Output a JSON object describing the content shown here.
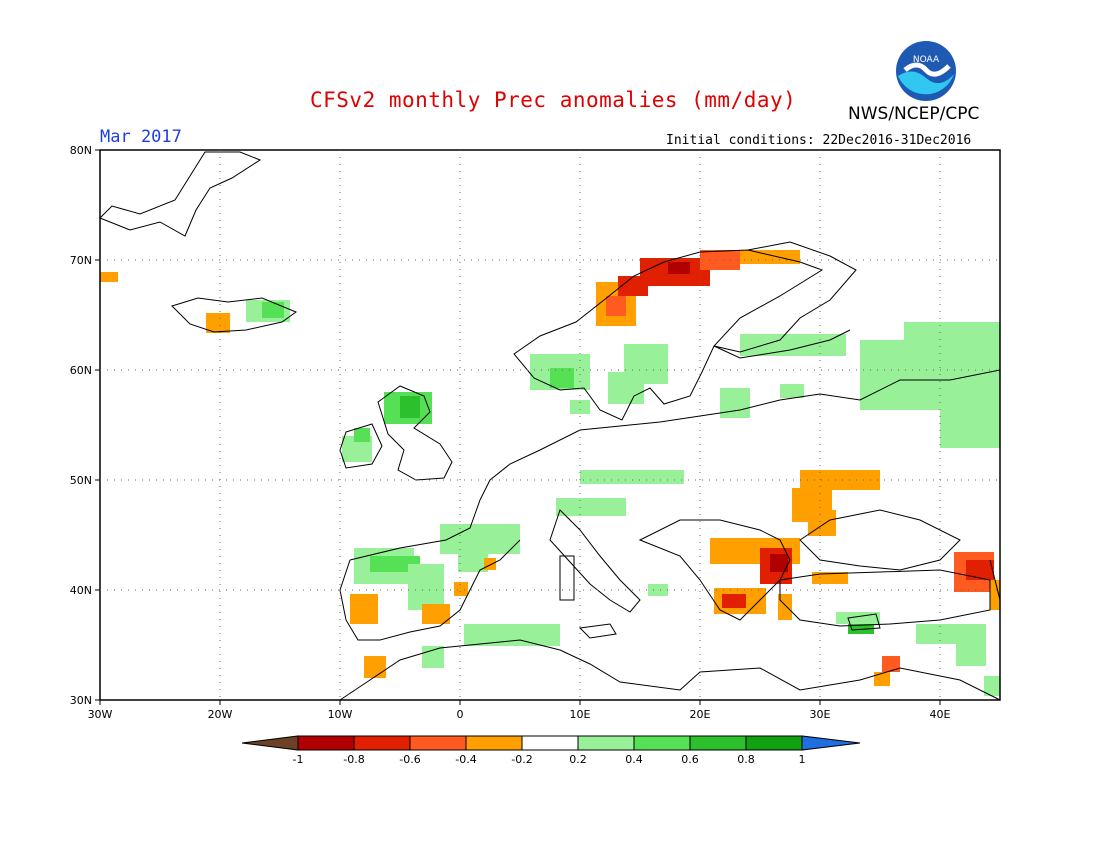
{
  "header": {
    "title": "CFSv2 monthly Prec anomalies (mm/day)",
    "month": "Mar 2017",
    "initial_conditions": "Initial conditions: 22Dec2016-31Dec2016",
    "agency": "NWS/NCEP/CPC",
    "logo_text": "NOAA"
  },
  "map": {
    "lon_range": [
      -30,
      45
    ],
    "lat_range": [
      30,
      80
    ],
    "lat_labels": [
      "80N",
      "70N",
      "60N",
      "50N",
      "40N",
      "30N"
    ],
    "lon_labels": [
      "30W",
      "20W",
      "10W",
      "0",
      "10E",
      "20E",
      "30E",
      "40E"
    ]
  },
  "colorbar": {
    "labels": [
      "-1",
      "-0.8",
      "-0.6",
      "-0.4",
      "-0.2",
      "0.2",
      "0.4",
      "0.6",
      "0.8",
      "1"
    ],
    "colors": [
      "#6b4226",
      "#b00000",
      "#e02000",
      "#ff5a1f",
      "#ff9f00",
      "#ffffff",
      "#98f098",
      "#56e056",
      "#2cc02c",
      "#10a010",
      "#1f6fe0"
    ]
  },
  "anomaly_colors": {
    "dry1": "#ff9f00",
    "dry2": "#ff5a1f",
    "dry3": "#e02000",
    "dry4": "#b00000",
    "wet1": "#98f098",
    "wet2": "#56e056",
    "wet3": "#2cc02c"
  }
}
